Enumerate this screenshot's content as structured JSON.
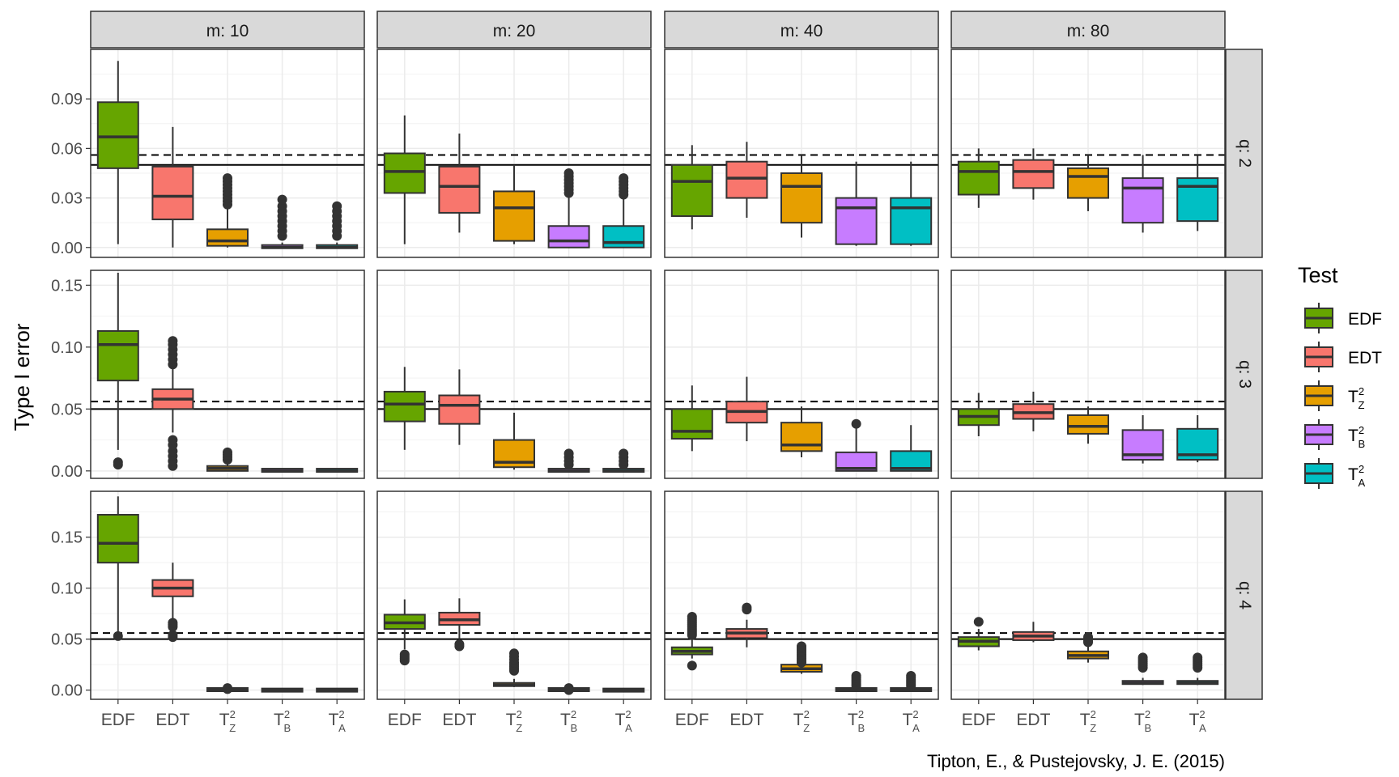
{
  "chart_data": {
    "type": "box",
    "ylabel": "Type I error",
    "caption": "Tipton, E., & Pustejovsky, J. E. (2015)",
    "facet_cols": [
      "m: 10",
      "m: 20",
      "m: 40",
      "m: 80"
    ],
    "facet_rows": [
      "q: 2",
      "q: 3",
      "q: 4"
    ],
    "categories": [
      "EDF",
      "EDT",
      "TZ2",
      "TB2",
      "TA2"
    ],
    "category_labels": [
      {
        "base": "EDF",
        "sup": "",
        "sub": ""
      },
      {
        "base": "EDT",
        "sup": "",
        "sub": ""
      },
      {
        "base": "T",
        "sup": "2",
        "sub": "Z"
      },
      {
        "base": "T",
        "sup": "2",
        "sub": "B"
      },
      {
        "base": "T",
        "sup": "2",
        "sub": "A"
      }
    ],
    "legend": {
      "title": "Test",
      "position": "right",
      "items": [
        {
          "base": "EDF",
          "sup": "",
          "sub": ""
        },
        {
          "base": "EDT",
          "sup": "",
          "sub": ""
        },
        {
          "base": "T",
          "sup": "2",
          "sub": "Z"
        },
        {
          "base": "T",
          "sup": "2",
          "sub": "B"
        },
        {
          "base": "T",
          "sup": "2",
          "sub": "A"
        }
      ]
    },
    "colors": [
      "#66a500",
      "#f8766d",
      "#e69f00",
      "#c77cff",
      "#00bfc4"
    ],
    "reference_lines": {
      "solid": 0.05,
      "dashed": 0.056
    },
    "grid": true,
    "row_axes": [
      {
        "ylim": [
          -0.006,
          0.12
        ],
        "ticks": [
          0.0,
          0.03,
          0.06,
          0.09
        ],
        "tick_labels": [
          "0.00",
          "0.03",
          "0.06",
          "0.09"
        ]
      },
      {
        "ylim": [
          -0.006,
          0.162
        ],
        "ticks": [
          0.0,
          0.05,
          0.1,
          0.15
        ],
        "tick_labels": [
          "0.00",
          "0.05",
          "0.10",
          "0.15"
        ]
      },
      {
        "ylim": [
          -0.009,
          0.195
        ],
        "ticks": [
          0.0,
          0.05,
          0.1,
          0.15
        ],
        "tick_labels": [
          "0.00",
          "0.05",
          "0.10",
          "0.15"
        ]
      }
    ],
    "panels": [
      [
        [
          {
            "lo": 0.002,
            "q1": 0.048,
            "med": 0.067,
            "q3": 0.088,
            "hi": 0.113,
            "out": []
          },
          {
            "lo": 0.0,
            "q1": 0.017,
            "med": 0.031,
            "q3": 0.049,
            "hi": 0.073,
            "out": []
          },
          {
            "lo": 0.0,
            "q1": 0.001,
            "med": 0.004,
            "q3": 0.011,
            "hi": 0.025,
            "out": [
              0.026,
              0.028,
              0.03,
              0.032,
              0.034,
              0.036,
              0.038,
              0.04,
              0.042
            ]
          },
          {
            "lo": 0.0,
            "q1": 0.0,
            "med": 0.0,
            "q3": 0.001,
            "hi": 0.003,
            "out": [
              0.007,
              0.01,
              0.013,
              0.016,
              0.019,
              0.022,
              0.025,
              0.029
            ]
          },
          {
            "lo": 0.0,
            "q1": 0.0,
            "med": 0.0,
            "q3": 0.001,
            "hi": 0.003,
            "out": [
              0.007,
              0.01,
              0.013,
              0.016,
              0.019,
              0.022,
              0.025
            ]
          }
        ],
        [
          {
            "lo": 0.002,
            "q1": 0.033,
            "med": 0.046,
            "q3": 0.057,
            "hi": 0.08,
            "out": []
          },
          {
            "lo": 0.009,
            "q1": 0.021,
            "med": 0.037,
            "q3": 0.049,
            "hi": 0.069,
            "out": []
          },
          {
            "lo": 0.002,
            "q1": 0.004,
            "med": 0.024,
            "q3": 0.034,
            "hi": 0.05,
            "out": []
          },
          {
            "lo": 0.0,
            "q1": 0.0,
            "med": 0.004,
            "q3": 0.013,
            "hi": 0.032,
            "out": [
              0.033,
              0.035,
              0.037,
              0.039,
              0.041,
              0.043,
              0.045
            ]
          },
          {
            "lo": 0.0,
            "q1": 0.0,
            "med": 0.003,
            "q3": 0.013,
            "hi": 0.031,
            "out": [
              0.032,
              0.034,
              0.036,
              0.038,
              0.04,
              0.042
            ]
          }
        ],
        [
          {
            "lo": 0.011,
            "q1": 0.019,
            "med": 0.04,
            "q3": 0.05,
            "hi": 0.062,
            "out": []
          },
          {
            "lo": 0.018,
            "q1": 0.03,
            "med": 0.042,
            "q3": 0.052,
            "hi": 0.064,
            "out": []
          },
          {
            "lo": 0.006,
            "q1": 0.015,
            "med": 0.037,
            "q3": 0.045,
            "hi": 0.056,
            "out": []
          },
          {
            "lo": 0.001,
            "q1": 0.002,
            "med": 0.024,
            "q3": 0.03,
            "hi": 0.052,
            "out": []
          },
          {
            "lo": 0.001,
            "q1": 0.002,
            "med": 0.024,
            "q3": 0.03,
            "hi": 0.052,
            "out": []
          }
        ],
        [
          {
            "lo": 0.024,
            "q1": 0.032,
            "med": 0.046,
            "q3": 0.052,
            "hi": 0.06,
            "out": []
          },
          {
            "lo": 0.029,
            "q1": 0.036,
            "med": 0.046,
            "q3": 0.053,
            "hi": 0.06,
            "out": []
          },
          {
            "lo": 0.022,
            "q1": 0.03,
            "med": 0.043,
            "q3": 0.048,
            "hi": 0.056,
            "out": []
          },
          {
            "lo": 0.009,
            "q1": 0.015,
            "med": 0.036,
            "q3": 0.042,
            "hi": 0.056,
            "out": []
          },
          {
            "lo": 0.01,
            "q1": 0.016,
            "med": 0.037,
            "q3": 0.042,
            "hi": 0.056,
            "out": []
          }
        ]
      ],
      [
        [
          {
            "lo": 0.017,
            "q1": 0.073,
            "med": 0.102,
            "q3": 0.113,
            "hi": 0.16,
            "out": [
              0.005,
              0.007
            ]
          },
          {
            "lo": 0.031,
            "q1": 0.05,
            "med": 0.058,
            "q3": 0.066,
            "hi": 0.085,
            "out": [
              0.004,
              0.008,
              0.012,
              0.016,
              0.021,
              0.025,
              0.086,
              0.09,
              0.094,
              0.098,
              0.102,
              0.105
            ]
          },
          {
            "lo": 0.0,
            "q1": 0.0,
            "med": 0.002,
            "q3": 0.004,
            "hi": 0.007,
            "out": [
              0.009,
              0.011,
              0.013,
              0.015
            ]
          },
          {
            "lo": 0.0,
            "q1": 0.0,
            "med": 0.0,
            "q3": 0.001,
            "hi": 0.001,
            "out": []
          },
          {
            "lo": 0.0,
            "q1": 0.0,
            "med": 0.0,
            "q3": 0.001,
            "hi": 0.001,
            "out": []
          }
        ],
        [
          {
            "lo": 0.017,
            "q1": 0.04,
            "med": 0.054,
            "q3": 0.064,
            "hi": 0.084,
            "out": []
          },
          {
            "lo": 0.021,
            "q1": 0.038,
            "med": 0.053,
            "q3": 0.061,
            "hi": 0.082,
            "out": []
          },
          {
            "lo": 0.001,
            "q1": 0.003,
            "med": 0.007,
            "q3": 0.025,
            "hi": 0.047,
            "out": []
          },
          {
            "lo": 0.0,
            "q1": 0.0,
            "med": 0.0,
            "q3": 0.001,
            "hi": 0.003,
            "out": [
              0.005,
              0.008,
              0.011,
              0.014
            ]
          },
          {
            "lo": 0.0,
            "q1": 0.0,
            "med": 0.0,
            "q3": 0.001,
            "hi": 0.003,
            "out": [
              0.005,
              0.008,
              0.011,
              0.014
            ]
          }
        ],
        [
          {
            "lo": 0.016,
            "q1": 0.026,
            "med": 0.032,
            "q3": 0.05,
            "hi": 0.069,
            "out": []
          },
          {
            "lo": 0.024,
            "q1": 0.039,
            "med": 0.048,
            "q3": 0.056,
            "hi": 0.076,
            "out": []
          },
          {
            "lo": 0.011,
            "q1": 0.016,
            "med": 0.021,
            "q3": 0.039,
            "hi": 0.052,
            "out": []
          },
          {
            "lo": 0.0,
            "q1": 0.0,
            "med": 0.002,
            "q3": 0.015,
            "hi": 0.038,
            "out": [
              0.038
            ]
          },
          {
            "lo": 0.0,
            "q1": 0.0,
            "med": 0.002,
            "q3": 0.016,
            "hi": 0.037,
            "out": []
          }
        ],
        [
          {
            "lo": 0.028,
            "q1": 0.037,
            "med": 0.044,
            "q3": 0.05,
            "hi": 0.063,
            "out": []
          },
          {
            "lo": 0.032,
            "q1": 0.042,
            "med": 0.047,
            "q3": 0.054,
            "hi": 0.064,
            "out": []
          },
          {
            "lo": 0.022,
            "q1": 0.03,
            "med": 0.036,
            "q3": 0.045,
            "hi": 0.052,
            "out": []
          },
          {
            "lo": 0.006,
            "q1": 0.009,
            "med": 0.013,
            "q3": 0.033,
            "hi": 0.045,
            "out": []
          },
          {
            "lo": 0.007,
            "q1": 0.009,
            "med": 0.013,
            "q3": 0.034,
            "hi": 0.045,
            "out": []
          }
        ]
      ],
      [
        [
          {
            "lo": 0.055,
            "q1": 0.125,
            "med": 0.144,
            "q3": 0.172,
            "hi": 0.19,
            "out": [
              0.053
            ]
          },
          {
            "lo": 0.067,
            "q1": 0.092,
            "med": 0.1,
            "q3": 0.108,
            "hi": 0.125,
            "out": [
              0.052,
              0.054,
              0.062,
              0.064,
              0.066
            ]
          },
          {
            "lo": 0.0,
            "q1": 0.0,
            "med": 0.0,
            "q3": 0.001,
            "hi": 0.001,
            "out": [
              0.001,
              0.002
            ]
          },
          {
            "lo": 0.0,
            "q1": 0.0,
            "med": 0.0,
            "q3": 0.0,
            "hi": 0.0,
            "out": []
          },
          {
            "lo": 0.0,
            "q1": 0.0,
            "med": 0.0,
            "q3": 0.0,
            "hi": 0.0,
            "out": []
          }
        ],
        [
          {
            "lo": 0.04,
            "q1": 0.06,
            "med": 0.066,
            "q3": 0.074,
            "hi": 0.089,
            "out": [
              0.029,
              0.031,
              0.033,
              0.035
            ]
          },
          {
            "lo": 0.05,
            "q1": 0.064,
            "med": 0.069,
            "q3": 0.076,
            "hi": 0.09,
            "out": [
              0.043,
              0.045
            ]
          },
          {
            "lo": 0.003,
            "q1": 0.004,
            "med": 0.005,
            "q3": 0.007,
            "hi": 0.011,
            "out": [
              0.019,
              0.021,
              0.023,
              0.025,
              0.027,
              0.03,
              0.033,
              0.036
            ]
          },
          {
            "lo": 0.0,
            "q1": 0.0,
            "med": 0.0,
            "q3": 0.001,
            "hi": 0.001,
            "out": [
              0.0,
              0.001,
              0.002
            ]
          },
          {
            "lo": 0.0,
            "q1": 0.0,
            "med": 0.0,
            "q3": 0.0,
            "hi": 0.0,
            "out": []
          }
        ],
        [
          {
            "lo": 0.031,
            "q1": 0.035,
            "med": 0.038,
            "q3": 0.042,
            "hi": 0.052,
            "out": [
              0.024,
              0.054,
              0.056,
              0.058,
              0.06,
              0.062,
              0.064,
              0.066,
              0.068,
              0.07,
              0.072
            ]
          },
          {
            "lo": 0.042,
            "q1": 0.051,
            "med": 0.056,
            "q3": 0.06,
            "hi": 0.069,
            "out": [
              0.079,
              0.081
            ]
          },
          {
            "lo": 0.016,
            "q1": 0.018,
            "med": 0.021,
            "q3": 0.025,
            "hi": 0.034,
            "out": [
              0.027,
              0.029,
              0.031,
              0.033,
              0.035,
              0.037,
              0.039,
              0.041,
              0.043
            ]
          },
          {
            "lo": 0.0,
            "q1": 0.0,
            "med": 0.0,
            "q3": 0.001,
            "hi": 0.002,
            "out": [
              0.004,
              0.006,
              0.008,
              0.01,
              0.012,
              0.014
            ]
          },
          {
            "lo": 0.0,
            "q1": 0.0,
            "med": 0.0,
            "q3": 0.001,
            "hi": 0.002,
            "out": [
              0.004,
              0.006,
              0.008,
              0.01,
              0.012,
              0.014
            ]
          }
        ],
        [
          {
            "lo": 0.039,
            "q1": 0.043,
            "med": 0.048,
            "q3": 0.052,
            "hi": 0.06,
            "out": [
              0.067
            ]
          },
          {
            "lo": 0.047,
            "q1": 0.049,
            "med": 0.053,
            "q3": 0.057,
            "hi": 0.067,
            "out": []
          },
          {
            "lo": 0.027,
            "q1": 0.031,
            "med": 0.034,
            "q3": 0.038,
            "hi": 0.045,
            "out": [
              0.047,
              0.048,
              0.05,
              0.052
            ]
          },
          {
            "lo": 0.005,
            "q1": 0.006,
            "med": 0.007,
            "q3": 0.009,
            "hi": 0.012,
            "out": [
              0.022,
              0.024,
              0.026,
              0.028,
              0.03,
              0.032
            ]
          },
          {
            "lo": 0.005,
            "q1": 0.006,
            "med": 0.007,
            "q3": 0.009,
            "hi": 0.012,
            "out": [
              0.022,
              0.024,
              0.026,
              0.028,
              0.03,
              0.032
            ]
          }
        ]
      ]
    ]
  }
}
